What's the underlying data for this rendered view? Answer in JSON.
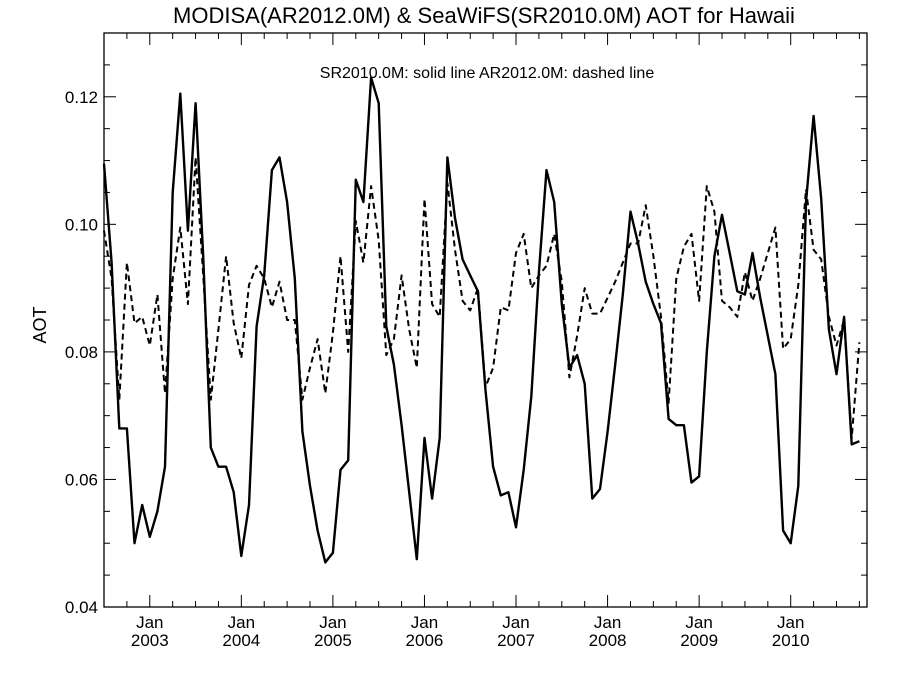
{
  "chart_data": {
    "type": "line",
    "title": "MODISA(AR2012.0M) & SeaWiFS(SR2010.0M)  AOT for Hawaii",
    "annotation": "SR2010.0M: solid line   AR2012.0M: dashed line",
    "xlabel": "",
    "ylabel": "AOT",
    "xlim": [
      "2002-07",
      "2010-11"
    ],
    "ylim": [
      0.04,
      0.13
    ],
    "y_ticks": [
      "0.04",
      "0.06",
      "0.08",
      "0.10",
      "0.12"
    ],
    "x_ticks": [
      {
        "month": "Jan",
        "year": "2003",
        "date": "2003-01"
      },
      {
        "month": "Jan",
        "year": "2004",
        "date": "2004-01"
      },
      {
        "month": "Jan",
        "year": "2005",
        "date": "2005-01"
      },
      {
        "month": "Jan",
        "year": "2006",
        "date": "2006-01"
      },
      {
        "month": "Jan",
        "year": "2007",
        "date": "2007-01"
      },
      {
        "month": "Jan",
        "year": "2008",
        "date": "2008-01"
      },
      {
        "month": "Jan",
        "year": "2009",
        "date": "2009-01"
      },
      {
        "month": "Jan",
        "year": "2010",
        "date": "2010-01"
      }
    ],
    "grid": false,
    "legend": "none",
    "series": [
      {
        "style": "solid",
        "points": [
          [
            "2002-07",
            0.1095
          ],
          [
            "2002-08",
            0.094
          ],
          [
            "2002-09",
            0.068
          ],
          [
            "2002-10",
            0.068
          ],
          [
            "2002-11",
            0.05
          ],
          [
            "2002-12",
            0.056
          ],
          [
            "2003-01",
            0.051
          ],
          [
            "2003-02",
            0.055
          ],
          [
            "2003-03",
            0.062
          ],
          [
            "2003-04",
            0.105
          ],
          [
            "2003-05",
            0.1205
          ],
          [
            "2003-06",
            0.099
          ],
          [
            "2003-07",
            0.119
          ],
          [
            "2003-08",
            0.095
          ],
          [
            "2003-09",
            0.065
          ],
          [
            "2003-10",
            0.062
          ],
          [
            "2003-11",
            0.062
          ],
          [
            "2003-12",
            0.058
          ],
          [
            "2004-01",
            0.048
          ],
          [
            "2004-02",
            0.056
          ],
          [
            "2004-03",
            0.084
          ],
          [
            "2004-04",
            0.092
          ],
          [
            "2004-05",
            0.1085
          ],
          [
            "2004-06",
            0.1105
          ],
          [
            "2004-07",
            0.1035
          ],
          [
            "2004-08",
            0.0915
          ],
          [
            "2004-09",
            0.0675
          ],
          [
            "2004-10",
            0.059
          ],
          [
            "2004-11",
            0.052
          ],
          [
            "2004-12",
            0.047
          ],
          [
            "2005-01",
            0.0485
          ],
          [
            "2005-02",
            0.0615
          ],
          [
            "2005-03",
            0.063
          ],
          [
            "2005-04",
            0.107
          ],
          [
            "2005-05",
            0.1035
          ],
          [
            "2005-06",
            0.123
          ],
          [
            "2005-07",
            0.119
          ],
          [
            "2005-08",
            0.084
          ],
          [
            "2005-09",
            0.078
          ],
          [
            "2005-10",
            0.0685
          ],
          [
            "2005-11",
            0.058
          ],
          [
            "2005-12",
            0.0475
          ],
          [
            "2006-01",
            0.0665
          ],
          [
            "2006-02",
            0.057
          ],
          [
            "2006-03",
            0.0665
          ],
          [
            "2006-04",
            0.1105
          ],
          [
            "2006-05",
            0.101
          ],
          [
            "2006-06",
            0.0945
          ],
          [
            "2006-07",
            0.092
          ],
          [
            "2006-08",
            0.0895
          ],
          [
            "2006-09",
            0.074
          ],
          [
            "2006-10",
            0.062
          ],
          [
            "2006-11",
            0.0575
          ],
          [
            "2006-12",
            0.058
          ],
          [
            "2007-01",
            0.0525
          ],
          [
            "2007-02",
            0.0615
          ],
          [
            "2007-03",
            0.073
          ],
          [
            "2007-04",
            0.0925
          ],
          [
            "2007-05",
            0.1085
          ],
          [
            "2007-06",
            0.1035
          ],
          [
            "2007-07",
            0.0875
          ],
          [
            "2007-08",
            0.0775
          ],
          [
            "2007-09",
            0.0795
          ],
          [
            "2007-10",
            0.075
          ],
          [
            "2007-11",
            0.057
          ],
          [
            "2007-12",
            0.0585
          ],
          [
            "2008-01",
            0.0675
          ],
          [
            "2008-02",
            0.078
          ],
          [
            "2008-03",
            0.089
          ],
          [
            "2008-04",
            0.102
          ],
          [
            "2008-05",
            0.097
          ],
          [
            "2008-06",
            0.091
          ],
          [
            "2008-07",
            0.0875
          ],
          [
            "2008-08",
            0.0845
          ],
          [
            "2008-09",
            0.0695
          ],
          [
            "2008-10",
            0.0685
          ],
          [
            "2008-11",
            0.0685
          ],
          [
            "2008-12",
            0.0595
          ],
          [
            "2009-01",
            0.0605
          ],
          [
            "2009-02",
            0.08
          ],
          [
            "2009-03",
            0.095
          ],
          [
            "2009-04",
            0.1015
          ],
          [
            "2009-05",
            0.0955
          ],
          [
            "2009-06",
            0.0895
          ],
          [
            "2009-07",
            0.089
          ],
          [
            "2009-08",
            0.0955
          ],
          [
            "2009-09",
            0.0885
          ],
          [
            "2009-10",
            0.0825
          ],
          [
            "2009-11",
            0.0765
          ],
          [
            "2009-12",
            0.052
          ],
          [
            "2010-01",
            0.05
          ],
          [
            "2010-02",
            0.059
          ],
          [
            "2010-03",
            0.1035
          ],
          [
            "2010-04",
            0.117
          ],
          [
            "2010-05",
            0.104
          ],
          [
            "2010-06",
            0.0835
          ],
          [
            "2010-07",
            0.0765
          ],
          [
            "2010-08",
            0.0855
          ],
          [
            "2010-09",
            0.0655
          ],
          [
            "2010-10",
            0.066
          ]
        ]
      },
      {
        "style": "dashed",
        "points": [
          [
            "2002-07",
            0.099
          ],
          [
            "2002-08",
            0.0915
          ],
          [
            "2002-09",
            0.0725
          ],
          [
            "2002-10",
            0.094
          ],
          [
            "2002-11",
            0.0845
          ],
          [
            "2002-12",
            0.0855
          ],
          [
            "2003-01",
            0.081
          ],
          [
            "2003-02",
            0.089
          ],
          [
            "2003-03",
            0.0735
          ],
          [
            "2003-04",
            0.0915
          ],
          [
            "2003-05",
            0.0995
          ],
          [
            "2003-06",
            0.0875
          ],
          [
            "2003-07",
            0.1105
          ],
          [
            "2003-08",
            0.092
          ],
          [
            "2003-09",
            0.0725
          ],
          [
            "2003-10",
            0.0835
          ],
          [
            "2003-11",
            0.095
          ],
          [
            "2003-12",
            0.0845
          ],
          [
            "2004-01",
            0.079
          ],
          [
            "2004-02",
            0.0905
          ],
          [
            "2004-03",
            0.0935
          ],
          [
            "2004-04",
            0.0915
          ],
          [
            "2004-05",
            0.087
          ],
          [
            "2004-06",
            0.091
          ],
          [
            "2004-07",
            0.085
          ],
          [
            "2004-08",
            0.085
          ],
          [
            "2004-09",
            0.0725
          ],
          [
            "2004-10",
            0.0775
          ],
          [
            "2004-11",
            0.082
          ],
          [
            "2004-12",
            0.0735
          ],
          [
            "2005-01",
            0.083
          ],
          [
            "2005-02",
            0.095
          ],
          [
            "2005-03",
            0.08
          ],
          [
            "2005-04",
            0.1005
          ],
          [
            "2005-05",
            0.094
          ],
          [
            "2005-06",
            0.106
          ],
          [
            "2005-07",
            0.0975
          ],
          [
            "2005-08",
            0.0795
          ],
          [
            "2005-09",
            0.082
          ],
          [
            "2005-10",
            0.092
          ],
          [
            "2005-11",
            0.0835
          ],
          [
            "2005-12",
            0.0775
          ],
          [
            "2006-01",
            0.104
          ],
          [
            "2006-02",
            0.0875
          ],
          [
            "2006-03",
            0.0855
          ],
          [
            "2006-04",
            0.1065
          ],
          [
            "2006-05",
            0.096
          ],
          [
            "2006-06",
            0.088
          ],
          [
            "2006-07",
            0.0865
          ],
          [
            "2006-08",
            0.09
          ],
          [
            "2006-09",
            0.0745
          ],
          [
            "2006-10",
            0.0775
          ],
          [
            "2006-11",
            0.087
          ],
          [
            "2006-12",
            0.0865
          ],
          [
            "2007-01",
            0.0955
          ],
          [
            "2007-02",
            0.0985
          ],
          [
            "2007-03",
            0.09
          ],
          [
            "2007-04",
            0.092
          ],
          [
            "2007-05",
            0.0935
          ],
          [
            "2007-06",
            0.0985
          ],
          [
            "2007-07",
            0.091
          ],
          [
            "2007-08",
            0.076
          ],
          [
            "2007-09",
            0.0825
          ],
          [
            "2007-10",
            0.09
          ],
          [
            "2007-11",
            0.086
          ],
          [
            "2007-12",
            0.086
          ],
          [
            "2008-01",
            0.0885
          ],
          [
            "2008-02",
            0.091
          ],
          [
            "2008-03",
            0.094
          ],
          [
            "2008-04",
            0.097
          ],
          [
            "2008-05",
            0.097
          ],
          [
            "2008-06",
            0.103
          ],
          [
            "2008-07",
            0.095
          ],
          [
            "2008-08",
            0.0855
          ],
          [
            "2008-09",
            0.072
          ],
          [
            "2008-10",
            0.0915
          ],
          [
            "2008-11",
            0.0965
          ],
          [
            "2008-12",
            0.0985
          ],
          [
            "2009-01",
            0.088
          ],
          [
            "2009-02",
            0.106
          ],
          [
            "2009-03",
            0.102
          ],
          [
            "2009-04",
            0.088
          ],
          [
            "2009-05",
            0.087
          ],
          [
            "2009-06",
            0.0855
          ],
          [
            "2009-07",
            0.0925
          ],
          [
            "2009-08",
            0.088
          ],
          [
            "2009-09",
            0.0915
          ],
          [
            "2009-10",
            0.0955
          ],
          [
            "2009-11",
            0.0995
          ],
          [
            "2009-12",
            0.0805
          ],
          [
            "2010-01",
            0.082
          ],
          [
            "2010-02",
            0.0905
          ],
          [
            "2010-03",
            0.1055
          ],
          [
            "2010-04",
            0.096
          ],
          [
            "2010-05",
            0.0945
          ],
          [
            "2010-06",
            0.0855
          ],
          [
            "2010-07",
            0.081
          ],
          [
            "2010-08",
            0.085
          ],
          [
            "2010-09",
            0.0665
          ],
          [
            "2010-10",
            0.0815
          ]
        ]
      }
    ]
  }
}
